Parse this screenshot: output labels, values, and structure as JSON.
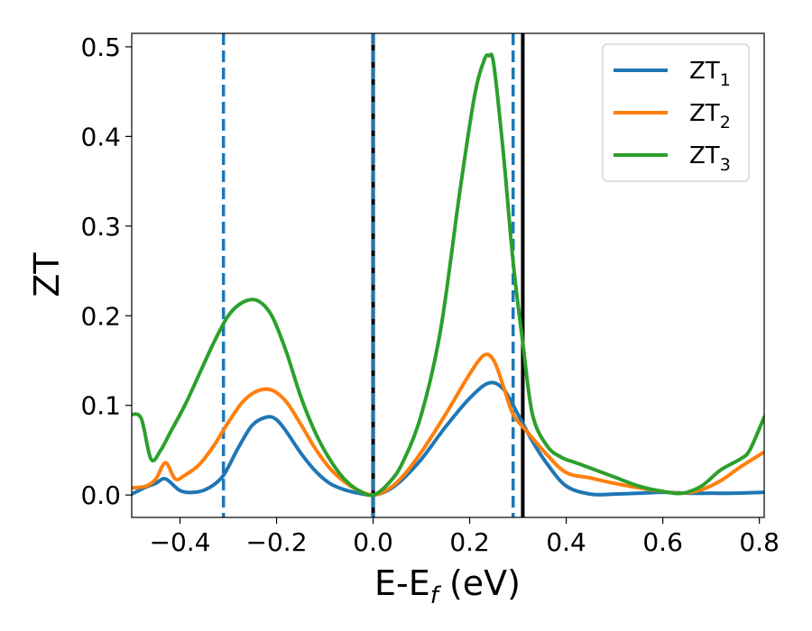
{
  "chart_data": {
    "type": "line",
    "xlabel": "E-E",
    "xlabel_sub": "f",
    "xlabel_unit": " (eV)",
    "ylabel": "ZT",
    "xlim": [
      -0.5,
      0.81
    ],
    "ylim": [
      -0.025,
      0.515
    ],
    "grid": false,
    "legend_placement": "top-right",
    "x_ticks": [
      -0.4,
      -0.2,
      0.0,
      0.2,
      0.4,
      0.6,
      0.8
    ],
    "x_tick_labels": [
      "−0.4",
      "−0.2",
      "0.0",
      "0.2",
      "0.4",
      "0.6",
      "0.8"
    ],
    "y_ticks": [
      0.0,
      0.1,
      0.2,
      0.3,
      0.4,
      0.5
    ],
    "y_tick_labels": [
      "0.0",
      "0.1",
      "0.2",
      "0.3",
      "0.4",
      "0.5"
    ],
    "vlines": [
      {
        "x": -0.31,
        "style": "dashed",
        "color": "#1f77b4"
      },
      {
        "x": 0.0,
        "style": "solid",
        "color": "#000000"
      },
      {
        "x": 0.0,
        "style": "dashed",
        "color": "#1f77b4"
      },
      {
        "x": 0.29,
        "style": "dashed",
        "color": "#1f77b4"
      },
      {
        "x": 0.31,
        "style": "solid",
        "color": "#000000"
      }
    ],
    "series": [
      {
        "name": "ZT",
        "sub": "1",
        "color": "#1f77b4",
        "x": [
          -0.5,
          -0.47,
          -0.45,
          -0.43,
          -0.4,
          -0.37,
          -0.34,
          -0.31,
          -0.28,
          -0.25,
          -0.22,
          -0.2,
          -0.18,
          -0.15,
          -0.12,
          -0.09,
          -0.06,
          -0.03,
          0.0,
          0.03,
          0.06,
          0.1,
          0.15,
          0.2,
          0.24,
          0.27,
          0.3,
          0.33,
          0.36,
          0.4,
          0.45,
          0.5,
          0.55,
          0.6,
          0.65,
          0.7,
          0.75,
          0.81
        ],
        "y": [
          0.001,
          0.009,
          0.013,
          0.018,
          0.005,
          0.003,
          0.008,
          0.022,
          0.052,
          0.078,
          0.087,
          0.084,
          0.071,
          0.047,
          0.027,
          0.013,
          0.006,
          0.002,
          0.0,
          0.005,
          0.017,
          0.04,
          0.076,
          0.108,
          0.125,
          0.118,
          0.09,
          0.06,
          0.035,
          0.01,
          0.001,
          0.001,
          0.002,
          0.003,
          0.002,
          0.002,
          0.002,
          0.003
        ]
      },
      {
        "name": "ZT",
        "sub": "2",
        "color": "#ff7f0e",
        "x": [
          -0.5,
          -0.47,
          -0.45,
          -0.43,
          -0.41,
          -0.39,
          -0.36,
          -0.33,
          -0.3,
          -0.27,
          -0.24,
          -0.21,
          -0.18,
          -0.15,
          -0.12,
          -0.09,
          -0.06,
          -0.03,
          0.0,
          0.03,
          0.06,
          0.1,
          0.15,
          0.2,
          0.23,
          0.25,
          0.27,
          0.29,
          0.32,
          0.36,
          0.4,
          0.45,
          0.5,
          0.55,
          0.6,
          0.64,
          0.68,
          0.72,
          0.76,
          0.81
        ],
        "y": [
          0.008,
          0.01,
          0.018,
          0.036,
          0.018,
          0.022,
          0.034,
          0.055,
          0.081,
          0.104,
          0.116,
          0.117,
          0.104,
          0.079,
          0.052,
          0.03,
          0.015,
          0.005,
          0.0,
          0.006,
          0.02,
          0.048,
          0.09,
          0.135,
          0.156,
          0.15,
          0.121,
          0.09,
          0.07,
          0.045,
          0.025,
          0.019,
          0.013,
          0.008,
          0.004,
          0.002,
          0.006,
          0.016,
          0.031,
          0.048
        ]
      },
      {
        "name": "ZT",
        "sub": "3",
        "color": "#2ca02c",
        "x": [
          -0.5,
          -0.48,
          -0.46,
          -0.44,
          -0.42,
          -0.39,
          -0.36,
          -0.33,
          -0.3,
          -0.27,
          -0.24,
          -0.21,
          -0.18,
          -0.15,
          -0.12,
          -0.09,
          -0.06,
          -0.03,
          0.0,
          0.03,
          0.06,
          0.1,
          0.14,
          0.18,
          0.21,
          0.23,
          0.24,
          0.25,
          0.27,
          0.29,
          0.31,
          0.33,
          0.36,
          0.39,
          0.42,
          0.45,
          0.5,
          0.55,
          0.6,
          0.64,
          0.68,
          0.72,
          0.76,
          0.78,
          0.81
        ],
        "y": [
          0.09,
          0.085,
          0.04,
          0.05,
          0.07,
          0.1,
          0.135,
          0.17,
          0.2,
          0.215,
          0.217,
          0.2,
          0.16,
          0.11,
          0.07,
          0.04,
          0.018,
          0.005,
          0.0,
          0.012,
          0.035,
          0.09,
          0.185,
          0.34,
          0.445,
          0.485,
          0.49,
          0.48,
          0.38,
          0.26,
          0.17,
          0.09,
          0.055,
          0.042,
          0.036,
          0.03,
          0.02,
          0.01,
          0.004,
          0.002,
          0.01,
          0.028,
          0.04,
          0.05,
          0.087
        ]
      }
    ]
  }
}
